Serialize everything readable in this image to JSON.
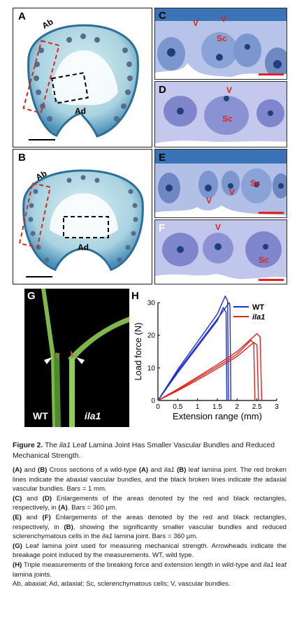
{
  "panels": {
    "A": {
      "label": "A",
      "ab": "Ab",
      "ad": "Ad"
    },
    "B": {
      "label": "B",
      "ab": "Ab",
      "ad": "Ad"
    },
    "C": {
      "label": "C",
      "marks": [
        "V",
        "V",
        "Sc"
      ]
    },
    "D": {
      "label": "D",
      "marks": [
        "V",
        "Sc"
      ]
    },
    "E": {
      "label": "E",
      "marks": [
        "Sc",
        "V",
        "V"
      ]
    },
    "F": {
      "label": "F",
      "marks": [
        "V",
        "Sc"
      ]
    },
    "G": {
      "label": "G",
      "wt": "WT",
      "mutant": "ila1"
    },
    "H": {
      "label": "H"
    }
  },
  "chart_data": {
    "type": "line",
    "xlabel": "Extension range (mm)",
    "ylabel": "Load force (N)",
    "xlim": [
      0,
      3
    ],
    "ylim": [
      0,
      30
    ],
    "xticks": [
      "0",
      "0.5",
      "1",
      "1.5",
      "2",
      "2.5",
      "3"
    ],
    "yticks": [
      "0",
      "10",
      "20",
      "30"
    ],
    "legend_placement": "top-right",
    "colors": {
      "WT": "#1b2fd6",
      "ila1": "#e0231b"
    },
    "series": [
      {
        "name": "WT",
        "x": [
          0,
          0.5,
          1.0,
          1.5,
          1.7,
          1.76,
          1.78
        ],
        "y": [
          0,
          9.5,
          18.0,
          26.5,
          32.0,
          30.5,
          0
        ]
      },
      {
        "name": "WT",
        "x": [
          0,
          0.5,
          1.0,
          1.5,
          1.8,
          1.82,
          1.84
        ],
        "y": [
          0,
          9.0,
          17.0,
          25.0,
          30.0,
          29.0,
          0
        ]
      },
      {
        "name": "WT",
        "x": [
          0,
          0.5,
          1.0,
          1.5,
          1.65,
          1.72,
          1.74
        ],
        "y": [
          0,
          8.5,
          16.5,
          24.5,
          28.5,
          27.0,
          0
        ]
      },
      {
        "name": "ila1",
        "x": [
          0,
          0.5,
          1.0,
          1.5,
          2.0,
          2.5,
          2.58,
          2.62
        ],
        "y": [
          0,
          3.5,
          7.2,
          11.0,
          15.0,
          20.5,
          19.5,
          0
        ]
      },
      {
        "name": "ila1",
        "x": [
          0,
          0.5,
          1.0,
          1.5,
          2.0,
          2.35,
          2.42,
          2.45
        ],
        "y": [
          0,
          3.2,
          6.8,
          10.4,
          14.2,
          18.5,
          17.5,
          0
        ]
      },
      {
        "name": "ila1",
        "x": [
          0,
          0.5,
          1.0,
          1.5,
          2.0,
          2.42,
          2.5,
          2.54
        ],
        "y": [
          0,
          3.0,
          6.3,
          9.8,
          13.5,
          17.8,
          17.0,
          0
        ]
      }
    ]
  },
  "caption": {
    "fig_num": "Figure 2.",
    "title_pre": " The ",
    "title_gene": "ila1",
    "title_post": " Leaf Lamina Joint Has Smaller Vascular Bundles and Reduced Mechanical Strength.",
    "p1_tag1": "(A)",
    "p1_t1": " and ",
    "p1_tag2": "(B)",
    "p1_t2": " Cross sections of a wild-type ",
    "p1_tag3": "(A)",
    "p1_t3": " and ",
    "p1_gene": "ila1",
    "p1_tag4": " (B)",
    "p1_t4": " leaf lamina joint. The red broken lines indicate the abaxial vascular bundles, and the black broken lines indicate the adaxial vascular bundles. Bars = 1 mm.",
    "p2_tag1": "(C)",
    "p2_t1": " and ",
    "p2_tag2": "(D)",
    "p2_t2": " Enlargements of the areas denoted by the red and black rectangles, respectively, in ",
    "p2_tag3": "(A)",
    "p2_t3": ". Bars = 360 μm.",
    "p3_tag1": "(E)",
    "p3_t1": " and ",
    "p3_tag2": "(F)",
    "p3_t2": " Enlargements of the areas denoted by the red and black rectangles, respectively, in ",
    "p3_tag3": "(B)",
    "p3_t3": ", showing the significantly smaller vascular bundles and reduced sclerenchymatous cells in the ",
    "p3_gene": "ila1",
    "p3_t4": " lamina joint. Bars = 360 μm.",
    "p4_tag": "(G)",
    "p4_t": " Leaf lamina joint used for measuring mechanical strength. Arrowheads indicate the breakage point induced by the measurements. WT, wild type.",
    "p5_tag": "(H)",
    "p5_t1": " Triple measurements of the breaking force and extension length in wild-type and ",
    "p5_gene": "ila1",
    "p5_t2": " leaf lamina joints.",
    "p6": "Ab, abaxial; Ad, adaxial; Sc, sclerenchymatous cells; V, vascular bundles."
  }
}
